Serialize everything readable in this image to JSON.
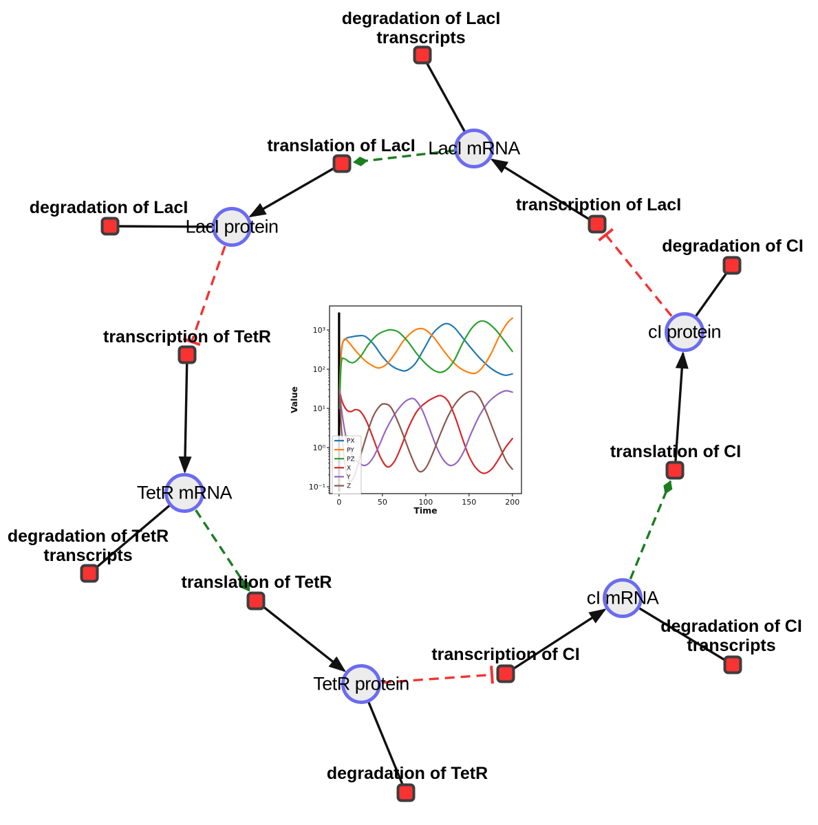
{
  "diagram": {
    "species": [
      {
        "id": "laci-mrna",
        "label": "LacI mRNA"
      },
      {
        "id": "laci-protein",
        "label": "LacI protein"
      },
      {
        "id": "tetr-mrna",
        "label": "TetR mRNA"
      },
      {
        "id": "tetr-protein",
        "label": "TetR protein"
      },
      {
        "id": "ci-mrna",
        "label": "cI mRNA"
      },
      {
        "id": "ci-protein",
        "label": "cI protein"
      }
    ],
    "reactions": [
      {
        "id": "degradation-laci-transcripts",
        "lines": [
          "degradation of LacI",
          "transcripts"
        ]
      },
      {
        "id": "translation-laci",
        "lines": [
          "translation of LacI"
        ]
      },
      {
        "id": "transcription-laci",
        "lines": [
          "transcription of LacI"
        ]
      },
      {
        "id": "degradation-laci",
        "lines": [
          "degradation of LacI"
        ]
      },
      {
        "id": "degradation-ci",
        "lines": [
          "degradation of CI"
        ]
      },
      {
        "id": "transcription-tetr",
        "lines": [
          "transcription of TetR"
        ]
      },
      {
        "id": "degradation-tetr-transcripts",
        "lines": [
          "degradation of TetR",
          "transcripts"
        ]
      },
      {
        "id": "translation-tetr",
        "lines": [
          "translation of TetR"
        ]
      },
      {
        "id": "degradation-tetr",
        "lines": [
          "degradation of TetR"
        ]
      },
      {
        "id": "transcription-ci",
        "lines": [
          "transcription of CI"
        ]
      },
      {
        "id": "degradation-ci-transcripts",
        "lines": [
          "degradation of CI",
          "transcripts"
        ]
      },
      {
        "id": "translation-ci",
        "lines": [
          "translation of CI"
        ]
      }
    ],
    "colors": {
      "species_fill": "#ececec",
      "species_border": "#6b6cf0",
      "reaction_fill": "#f93232",
      "reaction_border": "#3d3d3d",
      "edge": "#111111",
      "modifier_edge": "#1a7d1e",
      "inhibition_edge": "#f23333"
    }
  },
  "chart_data": {
    "type": "line",
    "title": "",
    "xlabel": "Time",
    "ylabel": "Value",
    "yscale": "log",
    "grid": false,
    "legend_position": "lower left",
    "xlim": [
      -11,
      210.5
    ],
    "ylog_lim": [
      -1.175,
      3.614
    ],
    "x_ticks": [
      0,
      50,
      100,
      150,
      200
    ],
    "y_ticks": [
      {
        "log": -1,
        "label": "10⁻¹"
      },
      {
        "log": 0,
        "label": "10⁰"
      },
      {
        "log": 1,
        "label": "10¹"
      },
      {
        "log": 2,
        "label": "10²"
      },
      {
        "log": 3,
        "label": "10³"
      }
    ],
    "annotations": [
      {
        "type": "vline",
        "t": 0,
        "v_min": 0.075,
        "v_max": 2800,
        "color": "#000000"
      }
    ],
    "series": [
      {
        "name": "PX",
        "color": "#1f77b4",
        "points": [
          [
            0.5,
            30
          ],
          [
            3,
            350
          ],
          [
            8,
            600
          ],
          [
            15,
            670
          ],
          [
            22,
            710
          ],
          [
            30,
            690
          ],
          [
            40,
            430
          ],
          [
            50,
            210
          ],
          [
            60,
            125
          ],
          [
            70,
            96
          ],
          [
            78,
            93
          ],
          [
            88,
            140
          ],
          [
            98,
            330
          ],
          [
            108,
            800
          ],
          [
            118,
            1300
          ],
          [
            125,
            1450
          ],
          [
            133,
            1150
          ],
          [
            143,
            620
          ],
          [
            153,
            330
          ],
          [
            163,
            185
          ],
          [
            173,
            115
          ],
          [
            183,
            82
          ],
          [
            192,
            70
          ],
          [
            200,
            76
          ]
        ]
      },
      {
        "name": "PY",
        "color": "#ff7f0e",
        "points": [
          [
            0.5,
            20
          ],
          [
            2.5,
            250
          ],
          [
            6,
            580
          ],
          [
            12,
            460
          ],
          [
            20,
            280
          ],
          [
            30,
            165
          ],
          [
            40,
            118
          ],
          [
            47,
            108
          ],
          [
            55,
            135
          ],
          [
            64,
            240
          ],
          [
            74,
            520
          ],
          [
            84,
            880
          ],
          [
            92,
            1080
          ],
          [
            100,
            1000
          ],
          [
            110,
            620
          ],
          [
            120,
            310
          ],
          [
            130,
            165
          ],
          [
            140,
            105
          ],
          [
            150,
            82
          ],
          [
            158,
            80
          ],
          [
            166,
            115
          ],
          [
            175,
            240
          ],
          [
            185,
            700
          ],
          [
            194,
            1500
          ],
          [
            200,
            2000
          ]
        ]
      },
      {
        "name": "PZ",
        "color": "#2ca02c",
        "points": [
          [
            0.5,
            10
          ],
          [
            2.5,
            140
          ],
          [
            6,
            185
          ],
          [
            12,
            152
          ],
          [
            18,
            152
          ],
          [
            26,
            230
          ],
          [
            34,
            430
          ],
          [
            44,
            750
          ],
          [
            54,
            960
          ],
          [
            61,
            1010
          ],
          [
            69,
            870
          ],
          [
            79,
            520
          ],
          [
            89,
            260
          ],
          [
            99,
            145
          ],
          [
            109,
            95
          ],
          [
            117,
            83
          ],
          [
            125,
            100
          ],
          [
            133,
            170
          ],
          [
            143,
            480
          ],
          [
            153,
            1100
          ],
          [
            162,
            1650
          ],
          [
            170,
            1600
          ],
          [
            180,
            1050
          ],
          [
            190,
            560
          ],
          [
            200,
            285
          ]
        ]
      },
      {
        "name": "X",
        "color": "#d62728",
        "points": [
          [
            0.5,
            28
          ],
          [
            4,
            14
          ],
          [
            9,
            9
          ],
          [
            14,
            8.3
          ],
          [
            19,
            9.3
          ],
          [
            25,
            8.2
          ],
          [
            32,
            4.5
          ],
          [
            40,
            1.6
          ],
          [
            48,
            0.55
          ],
          [
            56,
            0.32
          ],
          [
            64,
            0.45
          ],
          [
            72,
            1.1
          ],
          [
            80,
            3.2
          ],
          [
            90,
            8.5
          ],
          [
            100,
            14
          ],
          [
            110,
            19
          ],
          [
            118,
            21
          ],
          [
            126,
            15
          ],
          [
            134,
            6
          ],
          [
            142,
            1.8
          ],
          [
            150,
            0.6
          ],
          [
            158,
            0.3
          ],
          [
            167,
            0.22
          ],
          [
            176,
            0.28
          ],
          [
            184,
            0.5
          ],
          [
            192,
            1.0
          ],
          [
            200,
            1.7
          ]
        ]
      },
      {
        "name": "Y",
        "color": "#9467bd",
        "points": [
          [
            0.5,
            28
          ],
          [
            4,
            6
          ],
          [
            9,
            1.5
          ],
          [
            15,
            0.65
          ],
          [
            22,
            0.42
          ],
          [
            30,
            0.35
          ],
          [
            38,
            0.5
          ],
          [
            46,
            1.1
          ],
          [
            54,
            2.8
          ],
          [
            64,
            7
          ],
          [
            74,
            13.5
          ],
          [
            82,
            17.5
          ],
          [
            88,
            16.5
          ],
          [
            96,
            9
          ],
          [
            104,
            3.2
          ],
          [
            112,
            1.1
          ],
          [
            120,
            0.5
          ],
          [
            128,
            0.35
          ],
          [
            136,
            0.42
          ],
          [
            144,
            0.8
          ],
          [
            152,
            2.2
          ],
          [
            162,
            6.5
          ],
          [
            172,
            14
          ],
          [
            182,
            22
          ],
          [
            192,
            28
          ],
          [
            200,
            26
          ]
        ]
      },
      {
        "name": "Z",
        "color": "#8c564b",
        "points": [
          [
            0.5,
            22
          ],
          [
            3,
            2.5
          ],
          [
            7,
            0.35
          ],
          [
            12,
            0.14
          ],
          [
            18,
            0.2
          ],
          [
            24,
            0.55
          ],
          [
            31,
            1.8
          ],
          [
            39,
            6
          ],
          [
            47,
            11.5
          ],
          [
            53,
            13
          ],
          [
            60,
            10.5
          ],
          [
            68,
            4.5
          ],
          [
            76,
            1.6
          ],
          [
            84,
            0.55
          ],
          [
            92,
            0.25
          ],
          [
            100,
            0.3
          ],
          [
            108,
            0.7
          ],
          [
            116,
            2
          ],
          [
            126,
            6.5
          ],
          [
            136,
            15
          ],
          [
            146,
            24
          ],
          [
            154,
            27
          ],
          [
            162,
            19
          ],
          [
            170,
            8
          ],
          [
            178,
            2.8
          ],
          [
            186,
            1.0
          ],
          [
            193,
            0.45
          ],
          [
            200,
            0.28
          ]
        ]
      }
    ]
  }
}
